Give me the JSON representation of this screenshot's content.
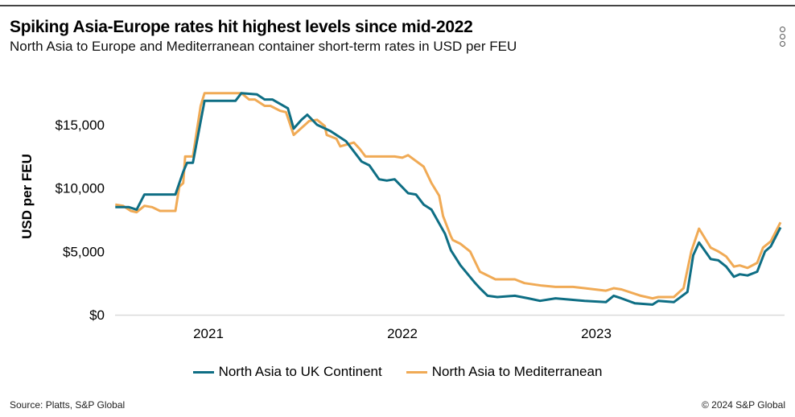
{
  "header": {
    "title": "Spiking Asia-Europe rates hit highest levels since mid-2022",
    "subtitle": "North Asia to Europe and Mediterranean container short-term rates in USD per FEU",
    "menu_icon": "kebab-menu-icon"
  },
  "footer": {
    "source": "Source: Platts, S&P Global",
    "copyright": "© 2024 S&P Global"
  },
  "chart_data": {
    "type": "line",
    "title": "Spiking Asia-Europe rates hit highest levels since mid-2022",
    "xlabel": "",
    "ylabel": "USD per FEU",
    "xlim": [
      2020.52,
      2023.95
    ],
    "ylim": [
      0,
      17500
    ],
    "x_ticks": [
      2021,
      2022,
      2023
    ],
    "x_tick_labels": [
      "2021",
      "2022",
      "2023"
    ],
    "y_ticks": [
      0,
      5000,
      10000,
      15000
    ],
    "y_tick_labels": [
      "$0",
      "$5,000",
      "$10,000",
      "$15,000"
    ],
    "grid": false,
    "legend_position": "bottom",
    "series": [
      {
        "name": "North Asia to UK Continent",
        "color": "#0E6E84",
        "points": [
          [
            2020.52,
            8500
          ],
          [
            2020.59,
            8500
          ],
          [
            2020.63,
            8300
          ],
          [
            2020.67,
            9500
          ],
          [
            2020.71,
            9500
          ],
          [
            2020.83,
            9500
          ],
          [
            2020.87,
            11300
          ],
          [
            2020.89,
            12000
          ],
          [
            2020.92,
            12000
          ],
          [
            2020.98,
            16900
          ],
          [
            2021.14,
            16900
          ],
          [
            2021.17,
            17500
          ],
          [
            2021.25,
            17400
          ],
          [
            2021.29,
            17000
          ],
          [
            2021.33,
            17000
          ],
          [
            2021.41,
            16300
          ],
          [
            2021.44,
            14700
          ],
          [
            2021.48,
            15400
          ],
          [
            2021.51,
            15800
          ],
          [
            2021.56,
            15000
          ],
          [
            2021.63,
            14500
          ],
          [
            2021.71,
            13700
          ],
          [
            2021.79,
            12100
          ],
          [
            2021.83,
            11800
          ],
          [
            2021.88,
            10700
          ],
          [
            2021.92,
            10600
          ],
          [
            2021.96,
            10700
          ],
          [
            2022.03,
            9600
          ],
          [
            2022.07,
            9500
          ],
          [
            2022.11,
            8700
          ],
          [
            2022.15,
            8300
          ],
          [
            2022.22,
            6400
          ],
          [
            2022.25,
            5100
          ],
          [
            2022.3,
            3900
          ],
          [
            2022.37,
            2600
          ],
          [
            2022.4,
            2100
          ],
          [
            2022.44,
            1500
          ],
          [
            2022.49,
            1400
          ],
          [
            2022.58,
            1500
          ],
          [
            2022.65,
            1300
          ],
          [
            2022.71,
            1100
          ],
          [
            2022.79,
            1300
          ],
          [
            2022.94,
            1100
          ],
          [
            2023.05,
            1000
          ],
          [
            2023.09,
            1500
          ],
          [
            2023.13,
            1300
          ],
          [
            2023.2,
            900
          ],
          [
            2023.29,
            800
          ],
          [
            2023.32,
            1100
          ],
          [
            2023.4,
            1000
          ],
          [
            2023.47,
            1800
          ],
          [
            2023.5,
            4700
          ],
          [
            2023.53,
            5700
          ],
          [
            2023.59,
            4400
          ],
          [
            2023.63,
            4300
          ],
          [
            2023.67,
            3800
          ],
          [
            2023.71,
            3000
          ],
          [
            2023.74,
            3200
          ],
          [
            2023.78,
            3100
          ],
          [
            2023.83,
            3400
          ],
          [
            2023.87,
            5000
          ],
          [
            2023.9,
            5400
          ],
          [
            2023.95,
            6900
          ]
        ]
      },
      {
        "name": "North Asia to Mediterranean",
        "color": "#F0AA55",
        "points": [
          [
            2020.52,
            8700
          ],
          [
            2020.56,
            8600
          ],
          [
            2020.6,
            8200
          ],
          [
            2020.63,
            8100
          ],
          [
            2020.67,
            8600
          ],
          [
            2020.71,
            8500
          ],
          [
            2020.75,
            8200
          ],
          [
            2020.83,
            8200
          ],
          [
            2020.85,
            10100
          ],
          [
            2020.87,
            10400
          ],
          [
            2020.88,
            12500
          ],
          [
            2020.92,
            12500
          ],
          [
            2020.96,
            16500
          ],
          [
            2020.98,
            17500
          ],
          [
            2021.17,
            17500
          ],
          [
            2021.21,
            17000
          ],
          [
            2021.24,
            17000
          ],
          [
            2021.29,
            16500
          ],
          [
            2021.32,
            16500
          ],
          [
            2021.37,
            16100
          ],
          [
            2021.4,
            16000
          ],
          [
            2021.44,
            14200
          ],
          [
            2021.52,
            15300
          ],
          [
            2021.56,
            15400
          ],
          [
            2021.6,
            14900
          ],
          [
            2021.61,
            14200
          ],
          [
            2021.66,
            13900
          ],
          [
            2021.68,
            13300
          ],
          [
            2021.75,
            13600
          ],
          [
            2021.78,
            13100
          ],
          [
            2021.81,
            12500
          ],
          [
            2021.96,
            12500
          ],
          [
            2022.0,
            12400
          ],
          [
            2022.03,
            12600
          ],
          [
            2022.11,
            11700
          ],
          [
            2022.15,
            10400
          ],
          [
            2022.19,
            9400
          ],
          [
            2022.21,
            7800
          ],
          [
            2022.25,
            6200
          ],
          [
            2022.26,
            5900
          ],
          [
            2022.3,
            5600
          ],
          [
            2022.35,
            5000
          ],
          [
            2022.4,
            3400
          ],
          [
            2022.48,
            2800
          ],
          [
            2022.58,
            2800
          ],
          [
            2022.63,
            2500
          ],
          [
            2022.72,
            2300
          ],
          [
            2022.79,
            2200
          ],
          [
            2022.88,
            2200
          ],
          [
            2022.94,
            2100
          ],
          [
            2023.05,
            1900
          ],
          [
            2023.09,
            2100
          ],
          [
            2023.13,
            2000
          ],
          [
            2023.23,
            1500
          ],
          [
            2023.29,
            1300
          ],
          [
            2023.32,
            1400
          ],
          [
            2023.4,
            1400
          ],
          [
            2023.45,
            2100
          ],
          [
            2023.49,
            5000
          ],
          [
            2023.53,
            6800
          ],
          [
            2023.59,
            5300
          ],
          [
            2023.63,
            5000
          ],
          [
            2023.67,
            4600
          ],
          [
            2023.71,
            3800
          ],
          [
            2023.74,
            3900
          ],
          [
            2023.78,
            3700
          ],
          [
            2023.83,
            4100
          ],
          [
            2023.86,
            5300
          ],
          [
            2023.9,
            5800
          ],
          [
            2023.95,
            7300
          ]
        ]
      }
    ]
  }
}
